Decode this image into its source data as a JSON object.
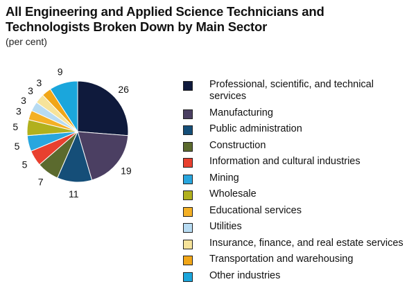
{
  "chart_data": {
    "type": "pie",
    "title": "All Engineering and Applied Science Technicians and Technologists Broken Down by Main Sector",
    "subtitle": "(per cent)",
    "legend_position": "right",
    "slices": [
      {
        "label": "Professional, scientific, and technical services",
        "value": 26,
        "color": "#0f1a3c"
      },
      {
        "label": "Manufacturing",
        "value": 19,
        "color": "#4b3f62"
      },
      {
        "label": "Public administration",
        "value": 11,
        "color": "#154e78"
      },
      {
        "label": "Construction",
        "value": 7,
        "color": "#5b6a2e"
      },
      {
        "label": "Information and cultural industries",
        "value": 5,
        "color": "#e8402f"
      },
      {
        "label": "Mining",
        "value": 5,
        "color": "#29a6de"
      },
      {
        "label": "Wholesale",
        "value": 5,
        "color": "#b1b01d"
      },
      {
        "label": "Educational services",
        "value": 3,
        "color": "#f4b025"
      },
      {
        "label": "Utilities",
        "value": 3,
        "color": "#b7dbf2"
      },
      {
        "label": "Insurance, finance, and real estate services",
        "value": 3,
        "color": "#f6e39a"
      },
      {
        "label": "Transportation and warehousing",
        "value": 3,
        "color": "#f1a617"
      },
      {
        "label": "Other industries",
        "value": 9,
        "color": "#1ba6dc"
      }
    ]
  }
}
